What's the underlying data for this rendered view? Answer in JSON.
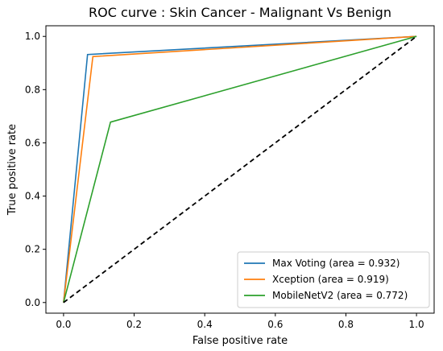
{
  "chart_data": {
    "type": "line",
    "title": "ROC curve : Skin Cancer - Malignant Vs Benign",
    "xlabel": "False positive rate",
    "ylabel": "True positive rate",
    "xlim": [
      -0.05,
      1.05
    ],
    "ylim": [
      -0.04,
      1.04
    ],
    "xticks": [
      0.0,
      0.2,
      0.4,
      0.6,
      0.8,
      1.0
    ],
    "yticks": [
      0.0,
      0.2,
      0.4,
      0.6,
      0.8,
      1.0
    ],
    "xtick_labels": [
      "0.0",
      "0.2",
      "0.4",
      "0.6",
      "0.8",
      "1.0"
    ],
    "ytick_labels": [
      "0.0",
      "0.2",
      "0.4",
      "0.6",
      "0.8",
      "1.0"
    ],
    "grid": false,
    "legend_position": "lower-right",
    "series": [
      {
        "name": "Max Voting (area = 0.932)",
        "color": "#1f77b4",
        "x": [
          0.0,
          0.068,
          1.0
        ],
        "y": [
          0.0,
          0.932,
          1.0
        ]
      },
      {
        "name": "Xception (area = 0.919)",
        "color": "#ff7f0e",
        "x": [
          0.0,
          0.083,
          1.0
        ],
        "y": [
          0.0,
          0.924,
          1.0
        ]
      },
      {
        "name": "MobileNetV2 (area = 0.772)",
        "color": "#2ca02c",
        "x": [
          0.0,
          0.133,
          1.0
        ],
        "y": [
          0.0,
          0.678,
          1.0
        ]
      }
    ],
    "reference_line": {
      "x": [
        0.0,
        1.0
      ],
      "y": [
        0.0,
        1.0
      ],
      "color": "#000000",
      "style": "dashed"
    }
  }
}
